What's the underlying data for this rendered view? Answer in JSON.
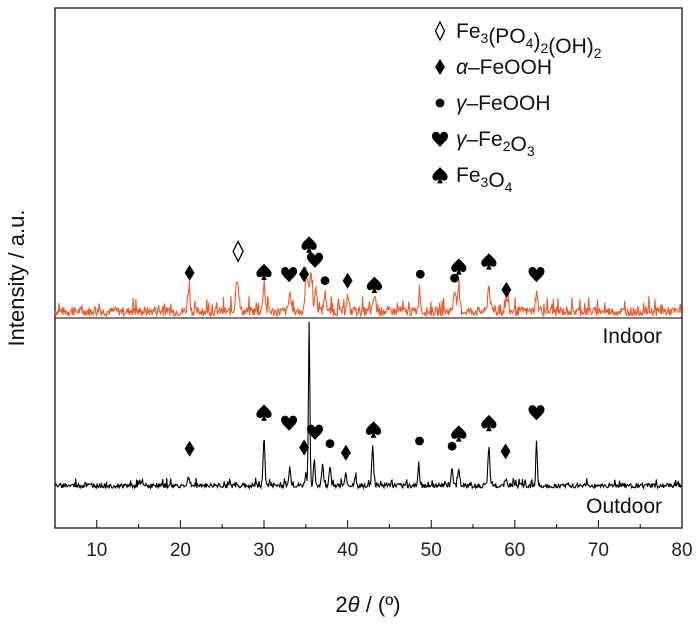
{
  "chart_data": {
    "type": "line",
    "title": "",
    "xlabel": {
      "prefix": "2",
      "italic": "θ",
      "suffix": " / (º)"
    },
    "ylabel": "Intensity / a.u.",
    "xlim": [
      5,
      80
    ],
    "xticks": [
      "10",
      "20",
      "30",
      "40",
      "50",
      "60",
      "70",
      "80"
    ],
    "grid": false,
    "legend_position": "top-right",
    "series": [
      {
        "name": "Indoor",
        "color": "#f05a28",
        "baseline_level": 0.35,
        "peaks": [
          {
            "x": 21.0,
            "h": 0.9,
            "w": 0.2
          },
          {
            "x": 26.8,
            "h": 1.3,
            "w": 0.25
          },
          {
            "x": 30.0,
            "h": 1.0,
            "w": 0.2
          },
          {
            "x": 33.1,
            "h": 0.7,
            "w": 0.2
          },
          {
            "x": 35.1,
            "h": 1.4,
            "w": 0.25
          },
          {
            "x": 35.6,
            "h": 1.6,
            "w": 0.2
          },
          {
            "x": 36.2,
            "h": 0.9,
            "w": 0.2
          },
          {
            "x": 37.3,
            "h": 0.7,
            "w": 0.2
          },
          {
            "x": 40.0,
            "h": 0.6,
            "w": 0.2
          },
          {
            "x": 43.2,
            "h": 0.6,
            "w": 0.2
          },
          {
            "x": 48.6,
            "h": 0.9,
            "w": 0.15
          },
          {
            "x": 52.8,
            "h": 0.9,
            "w": 0.2
          },
          {
            "x": 53.3,
            "h": 0.7,
            "w": 0.2
          },
          {
            "x": 56.9,
            "h": 1.0,
            "w": 0.2
          },
          {
            "x": 59.0,
            "h": 0.5,
            "w": 0.2
          },
          {
            "x": 62.6,
            "h": 0.7,
            "w": 0.2
          }
        ],
        "markers": [
          {
            "x": 21.1,
            "y": 1.35,
            "phase": "alpha-FeOOH"
          },
          {
            "x": 26.9,
            "y": 2.1,
            "phase": "Fe3(PO4)2(OH)2"
          },
          {
            "x": 30.0,
            "y": 1.4,
            "phase": "Fe3O4"
          },
          {
            "x": 33.0,
            "y": 1.3,
            "phase": "gamma-Fe2O3"
          },
          {
            "x": 34.8,
            "y": 1.3,
            "phase": "alpha-FeOOH"
          },
          {
            "x": 35.4,
            "y": 2.45,
            "phase": "Fe3O4"
          },
          {
            "x": 36.1,
            "y": 1.85,
            "phase": "gamma-Fe2O3"
          },
          {
            "x": 37.3,
            "y": 1.05,
            "phase": "gamma-FeOOH"
          },
          {
            "x": 40.0,
            "y": 1.05,
            "phase": "alpha-FeOOH"
          },
          {
            "x": 43.2,
            "y": 0.9,
            "phase": "Fe3O4"
          },
          {
            "x": 48.7,
            "y": 1.3,
            "phase": "gamma-FeOOH"
          },
          {
            "x": 52.8,
            "y": 1.15,
            "phase": "gamma-FeOOH"
          },
          {
            "x": 53.3,
            "y": 1.6,
            "phase": "Fe3O4"
          },
          {
            "x": 56.9,
            "y": 1.8,
            "phase": "Fe3O4"
          },
          {
            "x": 59.0,
            "y": 0.7,
            "phase": "alpha-FeOOH"
          },
          {
            "x": 62.6,
            "y": 1.3,
            "phase": "gamma-Fe2O3"
          }
        ]
      },
      {
        "name": "Outdoor",
        "color": "#000000",
        "baseline_level": 0.18,
        "peaks": [
          {
            "x": 21.0,
            "h": 0.3,
            "w": 0.2
          },
          {
            "x": 30.0,
            "h": 1.9,
            "w": 0.15
          },
          {
            "x": 33.1,
            "h": 0.7,
            "w": 0.15
          },
          {
            "x": 35.0,
            "h": 0.45,
            "w": 0.15
          },
          {
            "x": 35.4,
            "h": 6.3,
            "w": 0.12
          },
          {
            "x": 36.0,
            "h": 1.0,
            "w": 0.15
          },
          {
            "x": 37.0,
            "h": 0.8,
            "w": 0.15
          },
          {
            "x": 37.9,
            "h": 0.8,
            "w": 0.15
          },
          {
            "x": 39.8,
            "h": 0.45,
            "w": 0.15
          },
          {
            "x": 40.9,
            "h": 0.35,
            "w": 0.15
          },
          {
            "x": 43.0,
            "h": 1.5,
            "w": 0.15
          },
          {
            "x": 48.5,
            "h": 0.9,
            "w": 0.12
          },
          {
            "x": 52.5,
            "h": 0.7,
            "w": 0.15
          },
          {
            "x": 53.3,
            "h": 0.7,
            "w": 0.15
          },
          {
            "x": 56.9,
            "h": 1.6,
            "w": 0.15
          },
          {
            "x": 58.9,
            "h": 0.3,
            "w": 0.15
          },
          {
            "x": 62.6,
            "h": 1.8,
            "w": 0.12
          }
        ],
        "markers": [
          {
            "x": 21.1,
            "y": 1.2,
            "phase": "alpha-FeOOH"
          },
          {
            "x": 30.0,
            "y": 2.6,
            "phase": "Fe3O4"
          },
          {
            "x": 33.0,
            "y": 2.2,
            "phase": "gamma-Fe2O3"
          },
          {
            "x": 34.8,
            "y": 1.25,
            "phase": "alpha-FeOOH"
          },
          {
            "x": 36.1,
            "y": 1.85,
            "phase": "gamma-Fe2O3"
          },
          {
            "x": 37.9,
            "y": 1.4,
            "phase": "gamma-FeOOH"
          },
          {
            "x": 39.8,
            "y": 1.05,
            "phase": "alpha-FeOOH"
          },
          {
            "x": 43.1,
            "y": 1.95,
            "phase": "Fe3O4"
          },
          {
            "x": 48.6,
            "y": 1.5,
            "phase": "gamma-FeOOH"
          },
          {
            "x": 52.5,
            "y": 1.3,
            "phase": "gamma-FeOOH"
          },
          {
            "x": 53.3,
            "y": 1.8,
            "phase": "Fe3O4"
          },
          {
            "x": 56.9,
            "y": 2.2,
            "phase": "Fe3O4"
          },
          {
            "x": 58.9,
            "y": 1.1,
            "phase": "alpha-FeOOH"
          },
          {
            "x": 62.6,
            "y": 2.6,
            "phase": "gamma-Fe2O3"
          }
        ]
      }
    ],
    "legend": [
      {
        "id": "Fe3(PO4)2(OH)2",
        "symbol": "hollow-diamond",
        "parts": [
          [
            "Fe"
          ],
          [
            "3",
            "sub"
          ],
          [
            "(PO"
          ],
          [
            "4",
            "sub"
          ],
          [
            ")"
          ],
          [
            "2",
            "sub"
          ],
          [
            "(OH)"
          ],
          [
            "2",
            "sub"
          ]
        ]
      },
      {
        "id": "alpha-FeOOH",
        "symbol": "diamond",
        "parts": [
          [
            "α",
            "italic"
          ],
          [
            "–FeOOH"
          ]
        ]
      },
      {
        "id": "gamma-FeOOH",
        "symbol": "circle",
        "parts": [
          [
            "γ",
            "italic"
          ],
          [
            "–FeOOH"
          ]
        ]
      },
      {
        "id": "gamma-Fe2O3",
        "symbol": "heart",
        "parts": [
          [
            "γ",
            "italic"
          ],
          [
            "–Fe"
          ],
          [
            "2",
            "sub"
          ],
          [
            "O"
          ],
          [
            "3",
            "sub"
          ]
        ]
      },
      {
        "id": "Fe3O4",
        "symbol": "spade",
        "parts": [
          [
            "Fe"
          ],
          [
            "3",
            "sub"
          ],
          [
            "O"
          ],
          [
            "4",
            "sub"
          ]
        ]
      }
    ]
  }
}
